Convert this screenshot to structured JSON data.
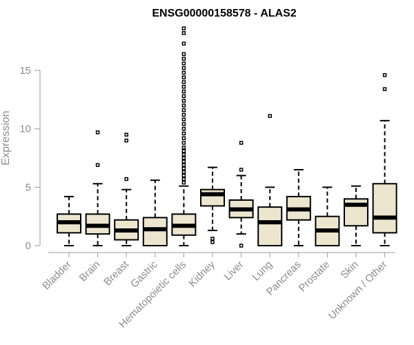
{
  "chart_data": {
    "type": "box",
    "title": "ENSG00000158578 - ALAS2",
    "xlabel": "",
    "ylabel": "Expression",
    "ylim": [
      0,
      19
    ],
    "yticks": [
      0,
      5,
      10,
      15
    ],
    "grid": false,
    "box_fill": "#ede6cf",
    "categories": [
      "Bladder",
      "Brain",
      "Breast",
      "Gastric",
      "Hematopoietic cells",
      "Kidney",
      "Liver",
      "Lung",
      "Pancreas",
      "Prostate",
      "Skin",
      "Unknown / Other"
    ],
    "boxes": [
      {
        "whisker_low": 0.0,
        "q1": 1.1,
        "median": 2.0,
        "q3": 2.7,
        "whisker_high": 4.2,
        "outliers": []
      },
      {
        "whisker_low": 0.0,
        "q1": 1.0,
        "median": 1.7,
        "q3": 2.7,
        "whisker_high": 5.3,
        "outliers": [
          6.9,
          9.7
        ]
      },
      {
        "whisker_low": 0.0,
        "q1": 0.5,
        "median": 1.3,
        "q3": 2.2,
        "whisker_high": 4.8,
        "outliers": [
          5.7,
          9.0,
          9.5
        ]
      },
      {
        "whisker_low": 0.0,
        "q1": 0.0,
        "median": 1.4,
        "q3": 2.4,
        "whisker_high": 5.6,
        "outliers": []
      },
      {
        "whisker_low": 0.0,
        "q1": 0.9,
        "median": 1.7,
        "q3": 2.7,
        "whisker_high": 5.1,
        "outliers": [
          5.4,
          5.7,
          6.0,
          6.3,
          6.6,
          6.9,
          7.2,
          7.5,
          7.8,
          8.1,
          8.4,
          8.8,
          9.2,
          9.6,
          10.0,
          10.4,
          10.8,
          11.2,
          11.6,
          12.0,
          12.4,
          12.8,
          13.2,
          13.6,
          14.0,
          14.4,
          14.8,
          15.2,
          15.6,
          16.0,
          16.4,
          17.3,
          18.2,
          18.6
        ]
      },
      {
        "whisker_low": 1.3,
        "q1": 3.4,
        "median": 4.4,
        "q3": 4.8,
        "whisker_high": 6.7,
        "outliers": [
          0.3,
          0.6
        ]
      },
      {
        "whisker_low": 1.0,
        "q1": 2.4,
        "median": 3.1,
        "q3": 3.9,
        "whisker_high": 6.0,
        "outliers": [
          0.0,
          6.5,
          8.8
        ]
      },
      {
        "whisker_low": 0.0,
        "q1": 0.0,
        "median": 2.0,
        "q3": 3.3,
        "whisker_high": 5.0,
        "outliers": [
          11.1
        ]
      },
      {
        "whisker_low": 0.0,
        "q1": 2.2,
        "median": 3.1,
        "q3": 4.2,
        "whisker_high": 6.5,
        "outliers": []
      },
      {
        "whisker_low": 0.0,
        "q1": 0.0,
        "median": 1.3,
        "q3": 2.5,
        "whisker_high": 5.0,
        "outliers": []
      },
      {
        "whisker_low": 0.0,
        "q1": 1.7,
        "median": 3.5,
        "q3": 4.0,
        "whisker_high": 5.1,
        "outliers": []
      },
      {
        "whisker_low": 0.0,
        "q1": 1.1,
        "median": 2.4,
        "q3": 5.3,
        "whisker_high": 10.7,
        "outliers": [
          13.4,
          14.6
        ]
      }
    ]
  }
}
